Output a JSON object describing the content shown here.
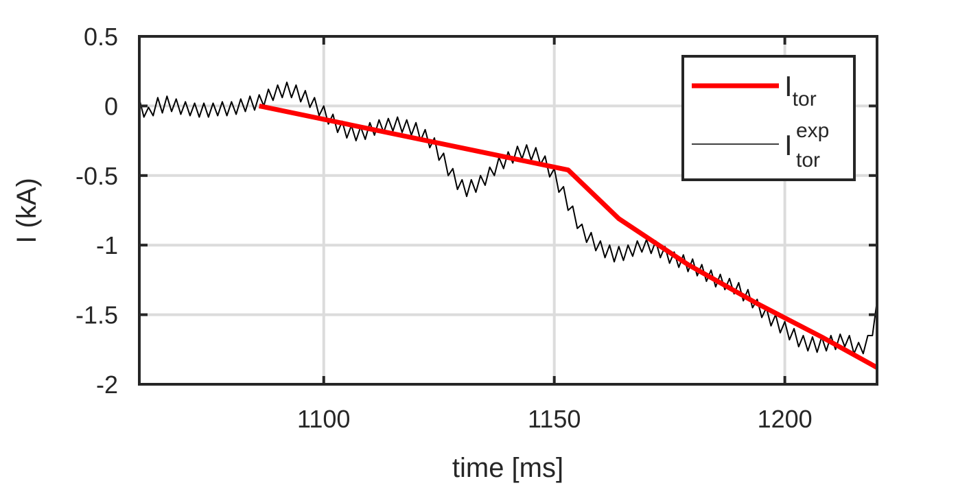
{
  "chart_data": {
    "type": "line",
    "xlabel": "time [ms]",
    "ylabel": "I (kA)",
    "xlim": [
      1060,
      1220
    ],
    "xticks": [
      1100,
      1150,
      1200
    ],
    "ylim": [
      -2,
      0.5
    ],
    "yticks": [
      -2,
      -1.5,
      -1,
      -0.5,
      0,
      0.5
    ],
    "grid": true,
    "legend": "upper right",
    "series": [
      {
        "name": "I",
        "subscript": "tor",
        "color": "#ff0000",
        "x": [
          1086,
          1153,
          1164,
          1179,
          1194,
          1208,
          1220
        ],
        "values": [
          0,
          -0.46,
          -0.81,
          -1.14,
          -1.42,
          -1.66,
          -1.88
        ]
      },
      {
        "name": "I",
        "subscript": "tor",
        "superscript": "exp",
        "color": "#000000",
        "x": [
          1060,
          1061,
          1062,
          1063,
          1064,
          1065,
          1066,
          1067,
          1068,
          1069,
          1070,
          1071,
          1072,
          1073,
          1074,
          1075,
          1076,
          1077,
          1078,
          1079,
          1080,
          1081,
          1082,
          1083,
          1084,
          1085,
          1086,
          1087,
          1088,
          1089,
          1090,
          1091,
          1092,
          1093,
          1094,
          1095,
          1096,
          1097,
          1098,
          1099,
          1100,
          1101,
          1102,
          1103,
          1104,
          1105,
          1106,
          1107,
          1108,
          1109,
          1110,
          1111,
          1112,
          1113,
          1114,
          1115,
          1116,
          1117,
          1118,
          1119,
          1120,
          1121,
          1122,
          1123,
          1124,
          1125,
          1126,
          1127,
          1128,
          1129,
          1130,
          1131,
          1132,
          1133,
          1134,
          1135,
          1136,
          1137,
          1138,
          1139,
          1140,
          1141,
          1142,
          1143,
          1144,
          1145,
          1146,
          1147,
          1148,
          1149,
          1150,
          1151,
          1152,
          1153,
          1154,
          1155,
          1156,
          1157,
          1158,
          1159,
          1160,
          1161,
          1162,
          1163,
          1164,
          1165,
          1166,
          1167,
          1168,
          1169,
          1170,
          1171,
          1172,
          1173,
          1174,
          1175,
          1176,
          1177,
          1178,
          1179,
          1180,
          1181,
          1182,
          1183,
          1184,
          1185,
          1186,
          1187,
          1188,
          1189,
          1190,
          1191,
          1192,
          1193,
          1194,
          1195,
          1196,
          1197,
          1198,
          1199,
          1200,
          1201,
          1202,
          1203,
          1204,
          1205,
          1206,
          1207,
          1208,
          1209,
          1210,
          1211,
          1212,
          1213,
          1214,
          1215,
          1216,
          1217,
          1218,
          1219,
          1220
        ],
        "values": [
          0.05,
          -0.08,
          -0.01,
          -0.07,
          0.06,
          -0.05,
          0.07,
          -0.04,
          0.05,
          -0.06,
          0.03,
          -0.07,
          0.02,
          -0.08,
          0.02,
          -0.08,
          0.02,
          -0.07,
          0.03,
          -0.07,
          0.03,
          -0.06,
          0.05,
          -0.04,
          0.07,
          -0.03,
          0.08,
          0,
          0.12,
          0.04,
          0.15,
          0.06,
          0.17,
          0.06,
          0.15,
          0.03,
          0.11,
          -0.01,
          0.06,
          -0.07,
          0,
          -0.13,
          -0.06,
          -0.19,
          -0.11,
          -0.23,
          -0.14,
          -0.25,
          -0.15,
          -0.24,
          -0.12,
          -0.21,
          -0.1,
          -0.19,
          -0.09,
          -0.18,
          -0.08,
          -0.19,
          -0.1,
          -0.21,
          -0.12,
          -0.25,
          -0.17,
          -0.3,
          -0.23,
          -0.39,
          -0.34,
          -0.5,
          -0.45,
          -0.6,
          -0.53,
          -0.65,
          -0.53,
          -0.62,
          -0.5,
          -0.57,
          -0.44,
          -0.5,
          -0.37,
          -0.45,
          -0.33,
          -0.41,
          -0.29,
          -0.38,
          -0.28,
          -0.39,
          -0.3,
          -0.42,
          -0.36,
          -0.51,
          -0.45,
          -0.62,
          -0.58,
          -0.75,
          -0.72,
          -0.88,
          -0.85,
          -0.98,
          -0.91,
          -1.04,
          -0.97,
          -1.09,
          -1.0,
          -1.12,
          -1.01,
          -1.11,
          -1.0,
          -1.08,
          -0.97,
          -1.05,
          -0.96,
          -1.06,
          -0.97,
          -1.09,
          -1.01,
          -1.13,
          -1.05,
          -1.16,
          -1.07,
          -1.19,
          -1.1,
          -1.22,
          -1.14,
          -1.26,
          -1.18,
          -1.3,
          -1.21,
          -1.32,
          -1.24,
          -1.35,
          -1.27,
          -1.4,
          -1.32,
          -1.45,
          -1.39,
          -1.52,
          -1.45,
          -1.58,
          -1.5,
          -1.63,
          -1.55,
          -1.68,
          -1.6,
          -1.73,
          -1.65,
          -1.76,
          -1.66,
          -1.77,
          -1.66,
          -1.76,
          -1.65,
          -1.75,
          -1.64,
          -1.73,
          -1.65,
          -1.78,
          -1.7,
          -1.78,
          -1.65,
          -1.65,
          -1.4
        ]
      }
    ]
  }
}
